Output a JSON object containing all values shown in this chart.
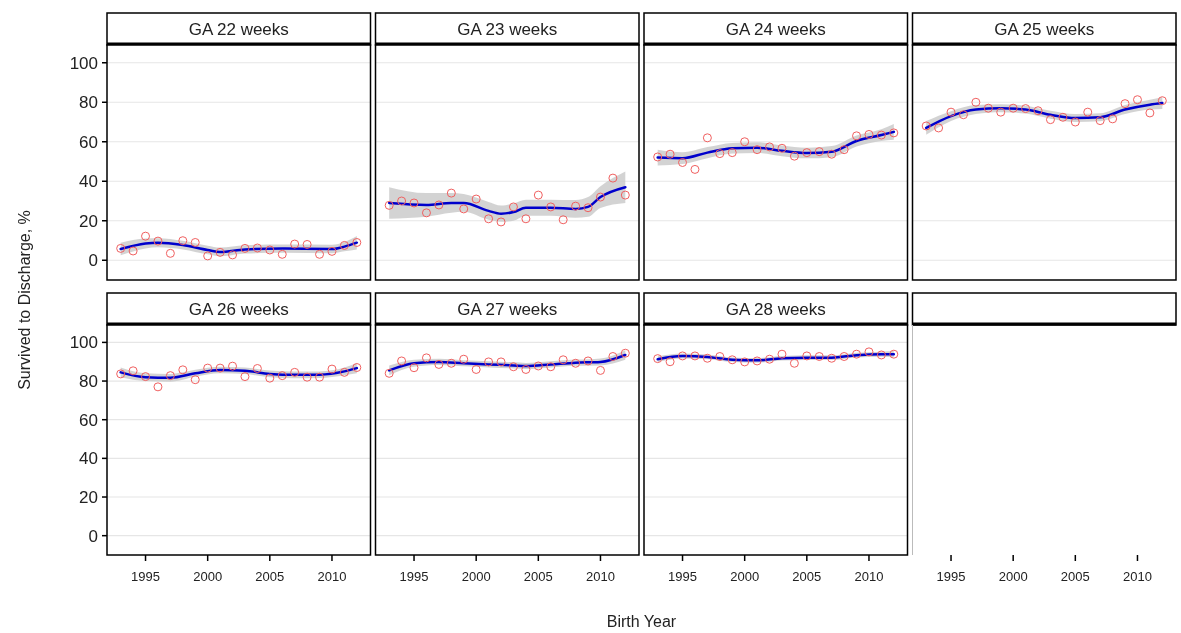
{
  "chart_data": [
    {
      "type": "scatter",
      "title": "GA 22 weeks",
      "ylabel": "Survived to Discharge, %",
      "xlim": [
        1991.9,
        2013.1
      ],
      "ylim": [
        -10,
        109
      ],
      "yticks": [
        0,
        20,
        40,
        60,
        80,
        100
      ],
      "grid": "y",
      "tick_labels": "y",
      "series": [
        {
          "type": "scatter",
          "marker": "circle",
          "color": "#f06060",
          "x": [
            1993,
            1994,
            1995,
            1996,
            1997,
            1998,
            1999,
            2000,
            2001,
            2002,
            2003,
            2004,
            2005,
            2006,
            2007,
            2008,
            2009,
            2010,
            2011,
            2012
          ],
          "values": [
            6,
            4.7,
            12.2,
            9.7,
            3.5,
            9.9,
            9,
            2.2,
            4,
            2.7,
            6,
            6.2,
            5.2,
            3,
            8.2,
            8,
            3,
            4.5,
            7.5,
            9
          ]
        },
        {
          "type": "line",
          "color": "#0000cc",
          "x": [
            1993,
            1995,
            1996,
            1998,
            2000,
            2001,
            2003,
            2006,
            2010,
            2011,
            2012
          ],
          "values": [
            5.7,
            8.5,
            8.9,
            7.7,
            5.2,
            4.2,
            5.5,
            5.9,
            5.7,
            6.9,
            8.9
          ],
          "lower": [
            2.5,
            6,
            6.6,
            5.5,
            3,
            2,
            3.4,
            3.8,
            3.5,
            4.5,
            5.5
          ],
          "upper": [
            8.9,
            11,
            11.2,
            9.9,
            7.4,
            6.4,
            7.6,
            8,
            7.9,
            9.3,
            12.3
          ]
        }
      ]
    },
    {
      "type": "scatter",
      "title": "GA 23 weeks",
      "xlim": [
        1991.9,
        2013.1
      ],
      "ylim": [
        -10,
        109
      ],
      "yticks": [
        0,
        20,
        40,
        60,
        80,
        100
      ],
      "grid": "y",
      "tick_labels": false,
      "series": [
        {
          "type": "scatter",
          "marker": "circle",
          "color": "#f06060",
          "x": [
            1993,
            1994,
            1995,
            1996,
            1997,
            1998,
            1999,
            2000,
            2001,
            2002,
            2003,
            2004,
            2005,
            2006,
            2007,
            2008,
            2009,
            2010,
            2011,
            2012
          ],
          "values": [
            27.8,
            30,
            29,
            24,
            28,
            34,
            26,
            31,
            21,
            19.4,
            27,
            21,
            33,
            27,
            20.5,
            27.4,
            26.6,
            32,
            41.6,
            33
          ]
        },
        {
          "type": "line",
          "color": "#0000cc",
          "x": [
            1993,
            1996,
            1998,
            1999,
            2001,
            2002,
            2003,
            2004,
            2006,
            2008,
            2009,
            2010,
            2012
          ],
          "values": [
            29,
            28,
            29,
            29,
            25,
            23.6,
            24.4,
            26.6,
            26.6,
            26,
            27,
            32,
            37
          ],
          "lower": [
            21,
            22,
            24,
            24.5,
            20.5,
            19.5,
            20,
            22.5,
            22.5,
            21.5,
            22,
            26.5,
            29
          ],
          "upper": [
            37,
            34,
            34,
            33.5,
            29.5,
            27.7,
            28.8,
            30.7,
            30.7,
            30.5,
            32,
            37.5,
            45
          ]
        }
      ]
    },
    {
      "type": "scatter",
      "title": "GA 24 weeks",
      "xlim": [
        1991.9,
        2013.1
      ],
      "ylim": [
        -10,
        109
      ],
      "yticks": [
        0,
        20,
        40,
        60,
        80,
        100
      ],
      "grid": "y",
      "tick_labels": false,
      "series": [
        {
          "type": "scatter",
          "marker": "circle",
          "color": "#f06060",
          "x": [
            1993,
            1994,
            1995,
            1996,
            1997,
            1998,
            1999,
            2000,
            2001,
            2002,
            2003,
            2004,
            2005,
            2006,
            2007,
            2008,
            2009,
            2010,
            2011,
            2012
          ],
          "values": [
            52.3,
            53.7,
            49.5,
            46,
            62,
            54,
            54.5,
            60,
            56,
            57.4,
            56.7,
            52.7,
            54.5,
            55,
            53.7,
            56,
            63,
            63.7,
            63.4,
            64.5
          ]
        },
        {
          "type": "line",
          "color": "#0000cc",
          "x": [
            1993,
            1995,
            1997,
            1999,
            2001,
            2003,
            2005,
            2007,
            2009,
            2011,
            2012
          ],
          "values": [
            52,
            51.7,
            54.5,
            56.7,
            57,
            55.4,
            54.3,
            55,
            60.4,
            63.4,
            65
          ],
          "lower": [
            48,
            48.7,
            51.7,
            54,
            54.3,
            52.7,
            51.6,
            52.2,
            57.6,
            60.4,
            61
          ],
          "upper": [
            56,
            54.7,
            57.3,
            59.4,
            59.7,
            58.1,
            57,
            57.8,
            63.2,
            66.4,
            69
          ]
        }
      ]
    },
    {
      "type": "scatter",
      "title": "GA 25 weeks",
      "xlim": [
        1991.9,
        2013.1
      ],
      "ylim": [
        -10,
        109
      ],
      "yticks": [
        0,
        20,
        40,
        60,
        80,
        100
      ],
      "grid": "y",
      "tick_labels": false,
      "series": [
        {
          "type": "scatter",
          "marker": "circle",
          "color": "#f06060",
          "x": [
            1993,
            1994,
            1995,
            1996,
            1997,
            1998,
            1999,
            2000,
            2001,
            2002,
            2003,
            2004,
            2005,
            2006,
            2007,
            2008,
            2009,
            2010,
            2011,
            2012
          ],
          "values": [
            68,
            67,
            75,
            73.7,
            80,
            77,
            75,
            77,
            76.8,
            75.7,
            71.2,
            72.4,
            70,
            75,
            70.7,
            71.6,
            79.3,
            81.3,
            74.6,
            80.8
          ]
        },
        {
          "type": "line",
          "color": "#0000cc",
          "x": [
            1993,
            1995,
            1997,
            1999,
            2001,
            2003,
            2005,
            2007,
            2009,
            2011,
            2012
          ],
          "values": [
            67,
            73,
            76.3,
            77,
            76.3,
            73.7,
            72,
            72.4,
            76.3,
            78.8,
            79.6
          ],
          "lower": [
            63.5,
            70.5,
            74,
            75,
            74.3,
            71.7,
            70,
            70.4,
            74,
            76.3,
            76.6
          ],
          "upper": [
            70.5,
            75.5,
            78.6,
            79,
            78.3,
            75.7,
            74,
            74.4,
            78.6,
            81.3,
            82.6
          ]
        }
      ]
    },
    {
      "type": "scatter",
      "title": "GA 26 weeks",
      "xlim": [
        1991.9,
        2013.1
      ],
      "xticks": [
        1995,
        2000,
        2005,
        2010
      ],
      "ylim": [
        -10,
        109
      ],
      "yticks": [
        0,
        20,
        40,
        60,
        80,
        100
      ],
      "grid": "y",
      "series": [
        {
          "type": "scatter",
          "marker": "circle",
          "color": "#f06060",
          "x": [
            1993,
            1994,
            1995,
            1996,
            1997,
            1998,
            1999,
            2000,
            2001,
            2002,
            2003,
            2004,
            2005,
            2006,
            2007,
            2008,
            2009,
            2010,
            2011,
            2012
          ],
          "values": [
            83.7,
            85.3,
            82.3,
            77,
            82.8,
            85.8,
            80.7,
            86.7,
            86.7,
            87.7,
            82.3,
            86.5,
            81.5,
            82.8,
            84.5,
            82,
            82,
            86.2,
            84.5,
            87
          ]
        },
        {
          "type": "line",
          "color": "#0000cc",
          "x": [
            1993,
            1995,
            1997,
            1999,
            2001,
            2003,
            2005,
            2007,
            2009,
            2011,
            2012
          ],
          "values": [
            84.5,
            82,
            81.7,
            84,
            85.7,
            85.3,
            83.7,
            83.2,
            83.3,
            85,
            86.7
          ],
          "lower": [
            82,
            80,
            79.7,
            82.2,
            84,
            83.6,
            82,
            81.5,
            81.6,
            83,
            84
          ],
          "upper": [
            87,
            84,
            83.7,
            85.8,
            87.4,
            87,
            85.4,
            84.9,
            85,
            87,
            89.4
          ]
        }
      ]
    },
    {
      "type": "scatter",
      "title": "GA 27 weeks",
      "xlabel": "Birth Year",
      "xlim": [
        1991.9,
        2013.1
      ],
      "xticks": [
        1995,
        2000,
        2005,
        2010
      ],
      "ylim": [
        -10,
        109
      ],
      "yticks": [
        0,
        20,
        40,
        60,
        80,
        100
      ],
      "grid": "y",
      "tick_labels": "x",
      "series": [
        {
          "type": "scatter",
          "marker": "circle",
          "color": "#f06060",
          "x": [
            1993,
            1994,
            1995,
            1996,
            1997,
            1998,
            1999,
            2000,
            2001,
            2002,
            2003,
            2004,
            2005,
            2006,
            2007,
            2008,
            2009,
            2010,
            2011,
            2012
          ],
          "values": [
            84,
            90.4,
            86.9,
            92,
            88.6,
            89.2,
            91.3,
            86,
            89.9,
            89.9,
            87.4,
            86,
            87.8,
            87.4,
            91,
            89.2,
            90.4,
            85.5,
            92.7,
            94.4
          ]
        },
        {
          "type": "line",
          "color": "#0000cc",
          "x": [
            1993,
            1995,
            1997,
            1999,
            2001,
            2003,
            2004,
            2006,
            2008,
            2010,
            2012
          ],
          "values": [
            85.5,
            89.2,
            89.9,
            89.2,
            88.6,
            88.1,
            87.8,
            88.6,
            89.5,
            89.9,
            93.5
          ],
          "lower": [
            83,
            87.4,
            88.3,
            87.6,
            87,
            86.5,
            86.2,
            87,
            87.9,
            88.1,
            91
          ],
          "upper": [
            88,
            91,
            91.5,
            90.8,
            90.2,
            89.7,
            89.4,
            90.2,
            91.1,
            91.7,
            96
          ]
        }
      ]
    },
    {
      "type": "scatter",
      "title": "GA 28 weeks",
      "xlim": [
        1991.9,
        2013.1
      ],
      "xticks": [
        1995,
        2000,
        2005,
        2010
      ],
      "ylim": [
        -10,
        109
      ],
      "yticks": [
        0,
        20,
        40,
        60,
        80,
        100
      ],
      "grid": "y",
      "tick_labels": "x",
      "series": [
        {
          "type": "scatter",
          "marker": "circle",
          "color": "#f06060",
          "x": [
            1993,
            1994,
            1995,
            1996,
            1997,
            1998,
            1999,
            2000,
            2001,
            2002,
            2003,
            2004,
            2005,
            2006,
            2007,
            2008,
            2009,
            2010,
            2011,
            2012
          ],
          "values": [
            91.6,
            90,
            93,
            93,
            91.8,
            92.7,
            91,
            89.9,
            90.4,
            91.3,
            93.9,
            89.2,
            93,
            92.7,
            91.8,
            92.7,
            93.9,
            95.1,
            93.5,
            93.9
          ]
        },
        {
          "type": "line",
          "color": "#0000cc",
          "x": [
            1993,
            1995,
            1997,
            1999,
            2001,
            2003,
            2005,
            2007,
            2009,
            2011,
            2012
          ],
          "values": [
            91.3,
            93,
            92.5,
            91,
            90.7,
            91.8,
            92.1,
            92.1,
            93.4,
            93.9,
            93.9
          ],
          "lower": [
            89.8,
            91.7,
            91.3,
            89.8,
            89.5,
            90.6,
            90.9,
            90.9,
            92.2,
            92.6,
            92.3
          ],
          "upper": [
            92.8,
            94.3,
            93.7,
            92.2,
            91.9,
            93,
            93.3,
            93.3,
            94.6,
            95.2,
            95.5
          ]
        }
      ]
    },
    {
      "type": "scatter",
      "xlim": [
        1991.9,
        2013.1
      ],
      "xticks": [
        1995,
        2000,
        2005,
        2010
      ],
      "ylim": [
        -10,
        109
      ],
      "tick_labels": "x"
    }
  ]
}
